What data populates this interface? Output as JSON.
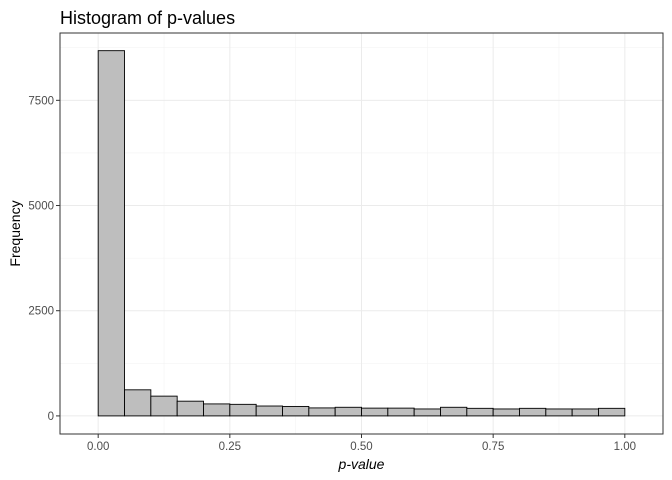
{
  "chart_data": {
    "type": "bar",
    "title": "Histogram of p-values",
    "xlabel": "p-value",
    "ylabel": "Frequency",
    "xlim": [
      -0.0725,
      1.0725
    ],
    "ylim": [
      -430,
      9100
    ],
    "x_ticks": [
      0.0,
      0.25,
      0.5,
      0.75,
      1.0
    ],
    "x_tick_labels": [
      "0.00",
      "0.25",
      "0.50",
      "0.75",
      "1.00"
    ],
    "y_ticks": [
      0,
      2500,
      5000,
      7500
    ],
    "y_tick_labels": [
      "0",
      "2500",
      "5000",
      "7500"
    ],
    "grid": true,
    "bin_width": 0.05,
    "bins": [
      {
        "x0": 0.0,
        "x1": 0.05,
        "count": 8680
      },
      {
        "x0": 0.05,
        "x1": 0.1,
        "count": 620
      },
      {
        "x0": 0.1,
        "x1": 0.15,
        "count": 470
      },
      {
        "x0": 0.15,
        "x1": 0.2,
        "count": 350
      },
      {
        "x0": 0.2,
        "x1": 0.25,
        "count": 285
      },
      {
        "x0": 0.25,
        "x1": 0.3,
        "count": 275
      },
      {
        "x0": 0.3,
        "x1": 0.35,
        "count": 235
      },
      {
        "x0": 0.35,
        "x1": 0.4,
        "count": 225
      },
      {
        "x0": 0.4,
        "x1": 0.45,
        "count": 190
      },
      {
        "x0": 0.45,
        "x1": 0.5,
        "count": 205
      },
      {
        "x0": 0.5,
        "x1": 0.55,
        "count": 185
      },
      {
        "x0": 0.55,
        "x1": 0.6,
        "count": 185
      },
      {
        "x0": 0.6,
        "x1": 0.65,
        "count": 165
      },
      {
        "x0": 0.65,
        "x1": 0.7,
        "count": 205
      },
      {
        "x0": 0.7,
        "x1": 0.75,
        "count": 180
      },
      {
        "x0": 0.75,
        "x1": 0.8,
        "count": 165
      },
      {
        "x0": 0.8,
        "x1": 0.85,
        "count": 180
      },
      {
        "x0": 0.85,
        "x1": 0.9,
        "count": 165
      },
      {
        "x0": 0.9,
        "x1": 0.95,
        "count": 165
      },
      {
        "x0": 0.95,
        "x1": 1.0,
        "count": 180
      }
    ],
    "colors": {
      "bar_fill": "#bebebe",
      "bar_stroke": "#000000",
      "grid": "#ebebeb",
      "panel_border": "#333333",
      "tick_label": "#4d4d4d"
    }
  }
}
